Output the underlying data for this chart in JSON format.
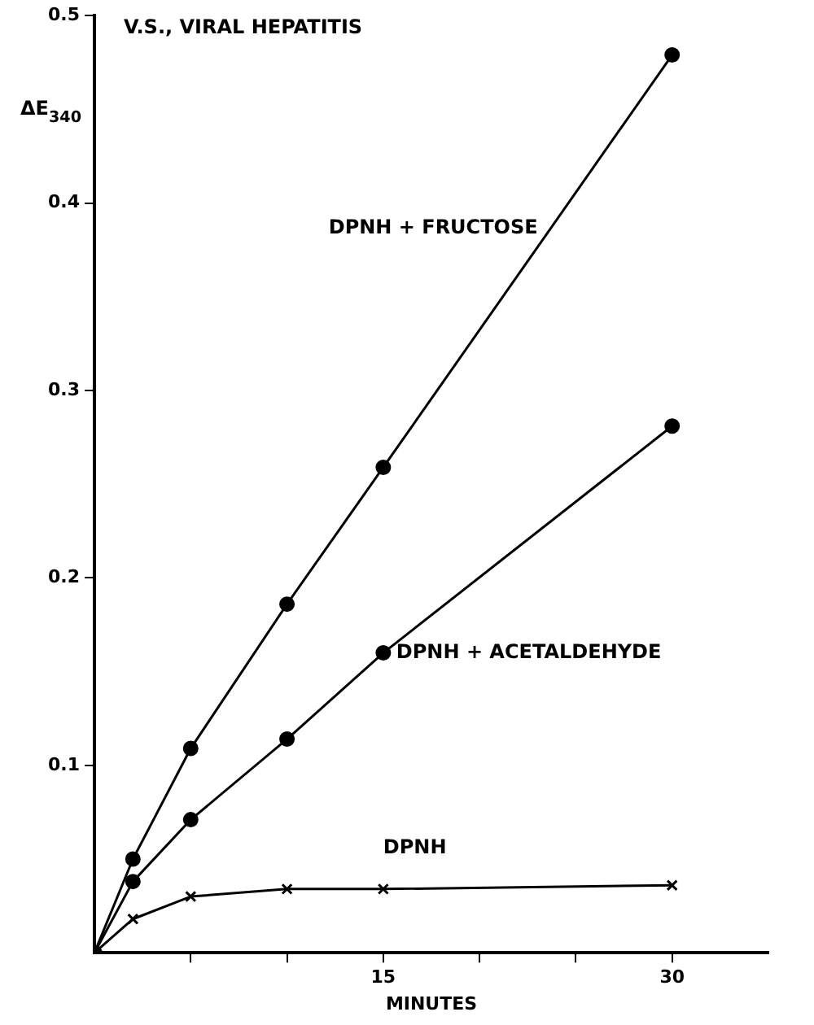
{
  "chart_data": {
    "type": "line",
    "title": "V.S., VIRAL HEPATITIS",
    "xlabel": "MINUTES",
    "ylabel": "ΔE$_{340}$",
    "x": [
      0,
      2,
      5,
      10,
      15,
      30
    ],
    "series": [
      {
        "name": "DPNH + FRUCTOSE",
        "color": "#000000",
        "marker": "circle",
        "values": [
          0,
          0.05,
          0.109,
          0.186,
          0.259,
          0.479
        ]
      },
      {
        "name": "DPNH + ACETALDEHYDE",
        "color": "#000000",
        "marker": "circle",
        "values": [
          0,
          0.038,
          0.071,
          0.114,
          0.16,
          0.281
        ]
      },
      {
        "name": "DPNH",
        "color": "#000000",
        "marker": "cross",
        "values": [
          0,
          0.018,
          0.03,
          0.034,
          0.034,
          0.036
        ]
      }
    ],
    "xlim": [
      0,
      35
    ],
    "xticks": [
      {
        "value": 5,
        "label": null
      },
      {
        "value": 10,
        "label": null
      },
      15,
      {
        "value": 20,
        "label": null
      },
      {
        "value": 25,
        "label": null
      },
      30
    ],
    "ylim": [
      0,
      0.5
    ],
    "yticks": [
      0.1,
      0.2,
      0.3,
      0.4,
      0.5
    ],
    "grid": false,
    "legend": false,
    "line_style": "solid"
  }
}
